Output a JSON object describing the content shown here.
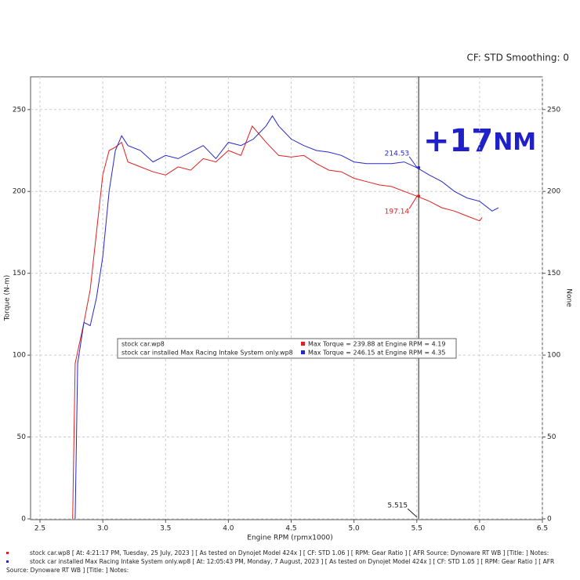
{
  "chart_data": {
    "type": "line",
    "header": "CF: STD Smoothing: 0",
    "xlabel": "Engine RPM (rpmx1000)",
    "ylabel": "Torque (N-m)",
    "y2label": "None",
    "xlim": [
      2.425,
      6.5
    ],
    "ylim": [
      0,
      270
    ],
    "y2lim": [
      0,
      270
    ],
    "xticks": [
      2.5,
      {
        "value": 3,
        "label": "3.0"
      },
      3.5,
      {
        "value": 4,
        "label": "4.0"
      },
      4.5,
      {
        "value": 5,
        "label": "5.0"
      },
      5.5,
      {
        "value": 6,
        "label": "6.0"
      },
      6.5
    ],
    "yticks": [
      0,
      50,
      100,
      150,
      200,
      250
    ],
    "y2ticks": [
      0,
      50,
      100,
      150,
      200,
      250
    ],
    "grid": true,
    "cursor": {
      "x": 5.515,
      "label": "5.515"
    },
    "headline": {
      "main": "+17",
      "unit": "NM"
    },
    "series": [
      {
        "name": "stock car.wp8",
        "color": "#e02020",
        "legend_note": "Max Torque = 239.88 at Engine RPM = 4.19",
        "footer": "stock car.wp8 [ At: 4:21:17 PM, Tuesday, 25 July, 2023 ] [ As tested on Dynojet Model 424x ] [ CF: STD 1.06 ] [ RPM: Gear Ratio ] [ AFR Source: Dynoware RT WB ] [Title: ]  Notes:",
        "x": [
          2.76,
          2.78,
          2.85,
          2.9,
          2.95,
          3.0,
          3.05,
          3.1,
          3.15,
          3.2,
          3.3,
          3.4,
          3.5,
          3.6,
          3.7,
          3.8,
          3.9,
          4.0,
          4.1,
          4.19,
          4.3,
          4.4,
          4.5,
          4.6,
          4.7,
          4.8,
          4.9,
          5.0,
          5.1,
          5.2,
          5.3,
          5.4,
          5.5,
          5.6,
          5.7,
          5.8,
          5.9,
          6.0,
          6.02
        ],
        "values": [
          0,
          95,
          120,
          140,
          175,
          210,
          225,
          227,
          230,
          218,
          215,
          212,
          210,
          215,
          213,
          220,
          218,
          225,
          222,
          239.88,
          230,
          222,
          221,
          222,
          217,
          213,
          212,
          208,
          206,
          204,
          203,
          200,
          197.14,
          194,
          190,
          188,
          185,
          182,
          184
        ],
        "cursor_value": 197.14,
        "cursor_label": "197.14"
      },
      {
        "name": "stock car installed Max Racing Intake System only.wp8",
        "color": "#2828c8",
        "legend_note": "Max Torque = 246.15 at Engine RPM = 4.35",
        "footer": "stock car installed Max Racing Intake System only.wp8 [ At: 12:05:43 PM, Monday, 7 August, 2023 ] [ As tested on Dynojet Model 424x ] [ CF: STD 1.05 ] [ RPM: Gear Ratio ] [ AFR Source: Dynoware RT WB ] [Title: ]  Notes:",
        "x": [
          2.78,
          2.8,
          2.85,
          2.9,
          2.95,
          3.0,
          3.05,
          3.1,
          3.15,
          3.2,
          3.3,
          3.4,
          3.5,
          3.6,
          3.7,
          3.8,
          3.9,
          4.0,
          4.1,
          4.2,
          4.3,
          4.35,
          4.4,
          4.5,
          4.6,
          4.7,
          4.8,
          4.9,
          5.0,
          5.1,
          5.2,
          5.3,
          5.4,
          5.5,
          5.6,
          5.7,
          5.8,
          5.9,
          6.0,
          6.1,
          6.15
        ],
        "values": [
          0,
          95,
          120,
          118,
          135,
          160,
          200,
          225,
          234,
          228,
          225,
          218,
          222,
          220,
          224,
          228,
          220,
          230,
          228,
          232,
          240,
          246.15,
          240,
          232,
          228,
          225,
          224,
          222,
          218,
          217,
          217,
          217,
          218,
          214.53,
          210,
          206,
          200,
          196,
          194,
          188,
          190
        ],
        "cursor_value": 214.53,
        "cursor_label": "214.53"
      }
    ]
  }
}
